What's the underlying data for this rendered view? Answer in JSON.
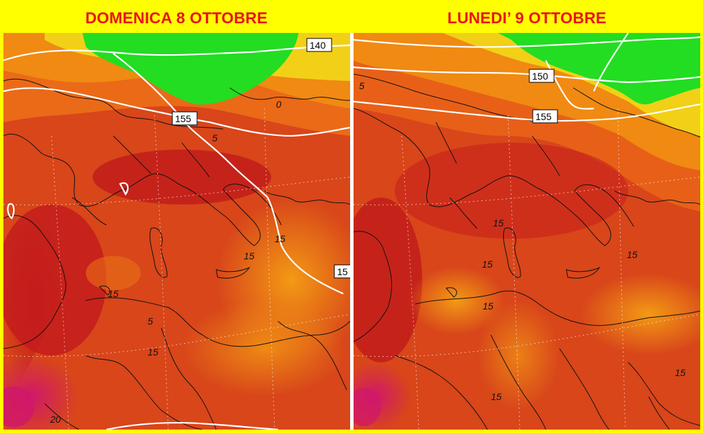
{
  "panels": [
    {
      "title": "DOMENICA 8 OTTOBRE",
      "geopotential_labels": [
        "140",
        "155",
        "15"
      ],
      "isotherm_labels": [
        "0",
        "15",
        "15",
        "15",
        "15",
        "20",
        "5",
        "5"
      ]
    },
    {
      "title": "LUNEDI’ 9 OTTOBRE",
      "geopotential_labels": [
        "150",
        "155"
      ],
      "isotherm_labels": [
        "5",
        "15",
        "15",
        "15",
        "15",
        "15"
      ]
    }
  ],
  "colors": {
    "background": "#ffff00",
    "title": "#e8151a",
    "green": "#22dd22",
    "yellow": "#f2e01a",
    "orange": "#f08a12",
    "red_orange": "#e0561a",
    "dark_red": "#c21e1e",
    "magenta": "#c81856"
  }
}
